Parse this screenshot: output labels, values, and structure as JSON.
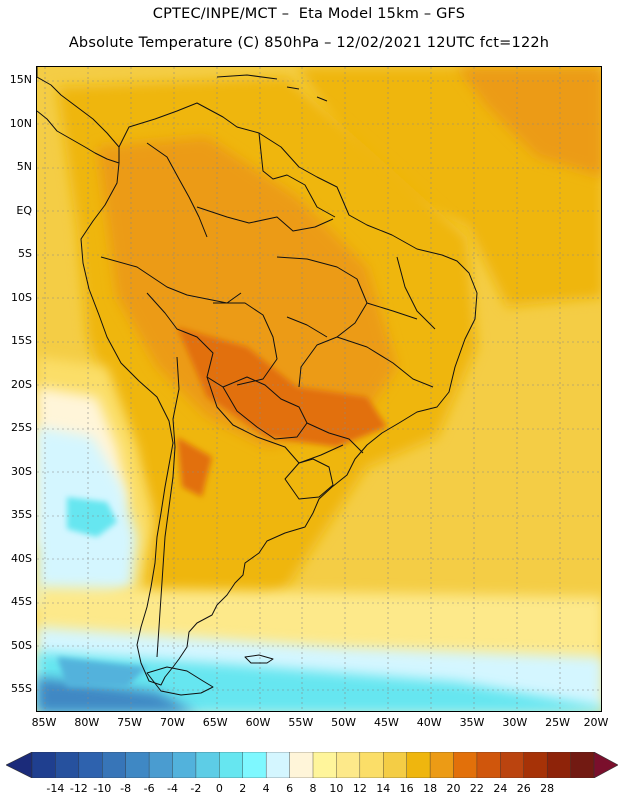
{
  "title": {
    "line1": "CPTEC/INPE/MCT –  Eta Model 15km – GFS",
    "line2": "Absolute Temperature (C) 850hPa – 12/02/2021 12UTC fct=122h"
  },
  "map": {
    "latitude_labels": [
      "15N",
      "10N",
      "5N",
      "EQ",
      "5S",
      "10S",
      "15S",
      "20S",
      "25S",
      "30S",
      "35S",
      "40S",
      "45S",
      "50S",
      "55S"
    ],
    "longitude_labels": [
      "85W",
      "80W",
      "75W",
      "70W",
      "65W",
      "60W",
      "55W",
      "50W",
      "45W",
      "40W",
      "35W",
      "30W",
      "25W",
      "20W"
    ],
    "field": "Absolute Temperature at 850hPa",
    "units": "C"
  },
  "colorbar": {
    "labels": [
      "-14",
      "-12",
      "-10",
      "-8",
      "-6",
      "-4",
      "-2",
      "0",
      "2",
      "4",
      "6",
      "8",
      "10",
      "12",
      "14",
      "16",
      "18",
      "20",
      "22",
      "24",
      "26",
      "28"
    ],
    "colors": [
      "#1f3f8f",
      "#26519e",
      "#2e62ae",
      "#3775b8",
      "#3f88c4",
      "#4a9cd0",
      "#52b2dc",
      "#5dcde6",
      "#66e6f0",
      "#7ef8ff",
      "#d4f6ff",
      "#fff5d9",
      "#fff59b",
      "#fde98a",
      "#fbde68",
      "#f4cd45",
      "#efb60e",
      "#ec9b15",
      "#e2700a",
      "#d0560c",
      "#bb440f",
      "#a63207",
      "#8e2309",
      "#721a12"
    ],
    "low_color": "#1b2b7a",
    "high_color": "#7a0f2c"
  }
}
